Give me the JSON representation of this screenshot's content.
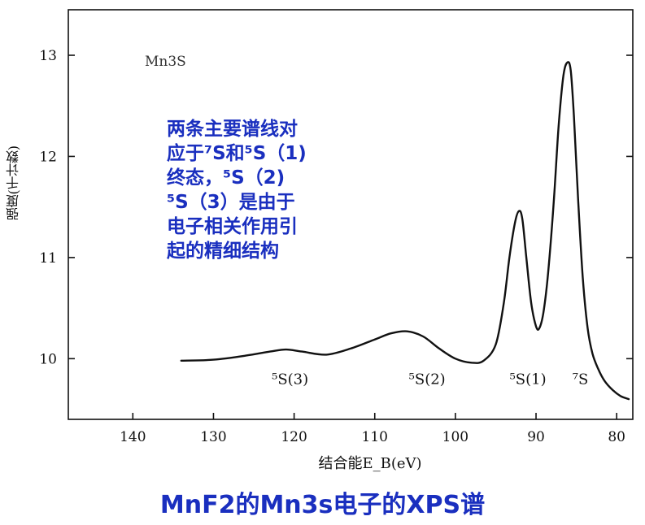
{
  "chart_data": {
    "type": "line",
    "title": "",
    "xlabel": "结合能E_B(eV)",
    "ylabel": "强度(千计数)",
    "x_ticks": [
      140,
      130,
      120,
      110,
      100,
      90,
      80
    ],
    "y_ticks": [
      10,
      11,
      12,
      13
    ],
    "xlim": [
      148,
      78
    ],
    "ylim": [
      9.4,
      13.45
    ],
    "x_reversed": true,
    "grid": false,
    "series": [
      {
        "x": [
          134,
          130,
          126,
          123,
          121,
          119,
          116,
          113,
          110,
          108,
          106,
          104,
          102,
          100,
          98,
          96.5,
          95,
          94,
          93.3,
          92.6,
          92.1,
          91.7,
          91.2,
          90.6,
          90,
          89.6,
          89.1,
          88.5,
          87.8,
          87.2,
          86.6,
          86.1,
          85.7,
          85.3,
          84.8,
          84.2,
          83.6,
          83,
          82.3,
          81.5,
          80.5,
          79.5,
          78.5
        ],
        "y": [
          9.98,
          9.99,
          10.03,
          10.07,
          10.09,
          10.07,
          10.04,
          10.1,
          10.19,
          10.25,
          10.27,
          10.22,
          10.1,
          10.0,
          9.96,
          9.98,
          10.14,
          10.55,
          11.0,
          11.35,
          11.46,
          11.38,
          11.0,
          10.55,
          10.32,
          10.3,
          10.45,
          10.85,
          11.55,
          12.3,
          12.8,
          12.93,
          12.85,
          12.4,
          11.6,
          10.8,
          10.3,
          10.05,
          9.9,
          9.78,
          9.69,
          9.63,
          9.6
        ]
      }
    ],
    "peak_labels": [
      {
        "text": "⁵S(3)",
        "x": 120.5,
        "y": 9.75
      },
      {
        "text": "⁵S(2)",
        "x": 103.5,
        "y": 9.75
      },
      {
        "text": "⁵S(1)",
        "x": 91,
        "y": 9.75
      },
      {
        "text": "⁷S",
        "x": 84.5,
        "y": 9.75
      }
    ]
  },
  "sample_label": "Mn3S",
  "annotation_lines": [
    "两条主要谱线对",
    "应于⁷S和⁵S（1)",
    "终态，⁵S（2)",
    "⁵S（3）是由于",
    "电子相关作用引",
    "起的精细结构"
  ],
  "caption": "MnF2的Mn3s电子的XPS谱",
  "colors": {
    "curve": "#111111",
    "annotation": "#1a2fbf"
  }
}
